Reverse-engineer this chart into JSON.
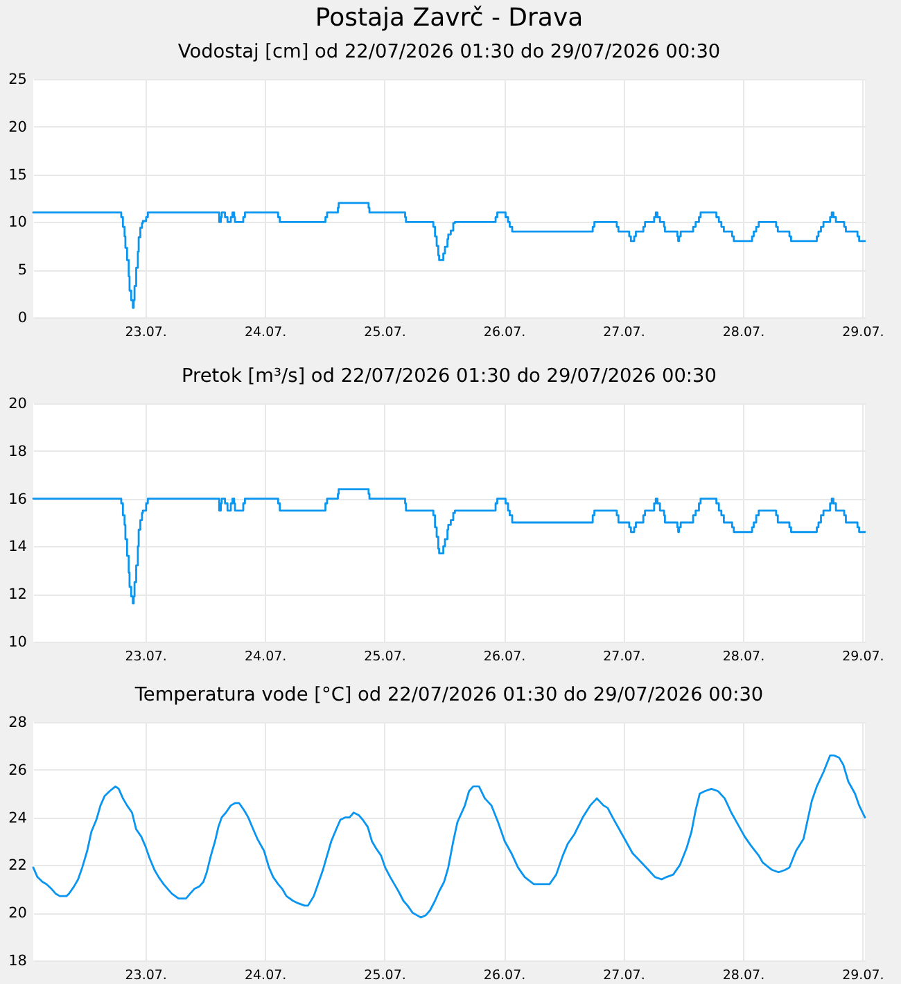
{
  "chart_data": [
    {
      "type": "step",
      "title": "Postaja Zavrč - Drava",
      "subtitle": "Vodostaj [cm] od 22/07/2026 01:30 do 29/07/2026 00:30",
      "x": [
        "2026-07-22T01:30",
        "2026-07-22T19:00",
        "2026-07-22T19:10",
        "2026-07-22T19:30",
        "2026-07-22T19:50",
        "2026-07-22T20:00",
        "2026-07-22T20:20",
        "2026-07-22T20:40",
        "2026-07-22T20:50",
        "2026-07-22T21:10",
        "2026-07-22T21:30",
        "2026-07-22T21:40",
        "2026-07-22T21:50",
        "2026-07-22T22:10",
        "2026-07-22T22:30",
        "2026-07-22T22:40",
        "2026-07-22T23:00",
        "2026-07-22T23:20",
        "2026-07-22T23:30",
        "2026-07-23T00:10",
        "2026-07-23T00:30",
        "2026-07-23T14:40",
        "2026-07-23T14:50",
        "2026-07-23T15:10",
        "2026-07-23T15:20",
        "2026-07-23T15:40",
        "2026-07-23T16:00",
        "2026-07-23T16:30",
        "2026-07-23T16:50",
        "2026-07-23T17:10",
        "2026-07-23T17:30",
        "2026-07-23T17:50",
        "2026-07-23T18:00",
        "2026-07-23T19:20",
        "2026-07-23T19:40",
        "2026-07-23T20:00",
        "2026-07-24T02:20",
        "2026-07-24T02:40",
        "2026-07-24T03:00",
        "2026-07-24T11:50",
        "2026-07-24T12:10",
        "2026-07-24T12:30",
        "2026-07-24T14:20",
        "2026-07-24T14:40",
        "2026-07-24T14:50",
        "2026-07-24T20:40",
        "2026-07-24T20:50",
        "2026-07-24T21:00",
        "2026-07-25T03:50",
        "2026-07-25T04:10",
        "2026-07-25T04:20",
        "2026-07-25T09:40",
        "2026-07-25T09:50",
        "2026-07-25T10:10",
        "2026-07-25T10:30",
        "2026-07-25T10:50",
        "2026-07-25T11:00",
        "2026-07-25T11:40",
        "2026-07-25T11:50",
        "2026-07-25T12:10",
        "2026-07-25T12:40",
        "2026-07-25T12:50",
        "2026-07-25T13:20",
        "2026-07-25T13:50",
        "2026-07-25T14:10",
        "2026-07-25T22:10",
        "2026-07-25T22:20",
        "2026-07-25T22:40",
        "2026-07-26T00:00",
        "2026-07-26T00:20",
        "2026-07-26T00:50",
        "2026-07-26T01:10",
        "2026-07-26T01:40",
        "2026-07-26T17:40",
        "2026-07-26T17:50",
        "2026-07-26T18:10",
        "2026-07-26T22:20",
        "2026-07-26T22:40",
        "2026-07-26T23:00",
        "2026-07-27T01:00",
        "2026-07-27T01:10",
        "2026-07-27T01:30",
        "2026-07-27T01:50",
        "2026-07-27T02:10",
        "2026-07-27T02:30",
        "2026-07-27T03:40",
        "2026-07-27T04:00",
        "2026-07-27T04:20",
        "2026-07-27T05:50",
        "2026-07-27T06:10",
        "2026-07-27T06:30",
        "2026-07-27T06:50",
        "2026-07-27T07:20",
        "2026-07-27T08:00",
        "2026-07-27T08:10",
        "2026-07-27T08:20",
        "2026-07-27T10:30",
        "2026-07-27T10:50",
        "2026-07-27T11:00",
        "2026-07-27T11:10",
        "2026-07-27T11:30",
        "2026-07-27T13:40",
        "2026-07-27T14:00",
        "2026-07-27T14:30",
        "2026-07-27T15:10",
        "2026-07-27T15:30",
        "2026-07-27T18:20",
        "2026-07-27T18:40",
        "2026-07-27T19:10",
        "2026-07-27T19:40",
        "2026-07-27T20:10",
        "2026-07-27T21:30",
        "2026-07-27T21:50",
        "2026-07-27T22:10",
        "2026-07-28T01:30",
        "2026-07-28T01:50",
        "2026-07-28T02:10",
        "2026-07-28T02:40",
        "2026-07-28T03:10",
        "2026-07-28T06:30",
        "2026-07-28T06:40",
        "2026-07-28T07:00",
        "2026-07-28T09:10",
        "2026-07-28T09:20",
        "2026-07-28T09:40",
        "2026-07-28T14:30",
        "2026-07-28T14:50",
        "2026-07-28T15:10",
        "2026-07-28T15:40",
        "2026-07-28T16:10",
        "2026-07-28T17:20",
        "2026-07-28T17:30",
        "2026-07-28T17:50",
        "2026-07-28T18:10",
        "2026-07-28T18:40",
        "2026-07-28T20:10",
        "2026-07-28T20:20",
        "2026-07-28T20:40",
        "2026-07-28T22:40",
        "2026-07-28T23:00",
        "2026-07-28T23:20",
        "2026-07-29T00:30"
      ],
      "values": [
        11,
        11,
        10.5,
        9.5,
        8.5,
        7.3,
        6,
        4.3,
        2.8,
        1.8,
        1,
        1.8,
        3.3,
        5.2,
        6.9,
        8.4,
        9.4,
        9.9,
        10.1,
        10.5,
        11,
        11,
        10,
        10.5,
        11,
        11,
        10.5,
        10,
        10,
        10.5,
        11,
        10.5,
        10,
        10,
        10.5,
        11,
        11,
        10.5,
        10,
        10,
        10.5,
        11,
        11,
        11.5,
        12,
        12,
        11.5,
        11,
        11,
        10.5,
        10,
        10,
        9.5,
        8.5,
        7.5,
        6.5,
        6,
        6,
        6.7,
        7.4,
        8.2,
        8.7,
        9.1,
        9.9,
        10,
        10,
        10.5,
        11,
        11,
        10.5,
        10,
        9.5,
        9,
        9,
        9.5,
        10,
        10,
        9.5,
        9,
        9,
        8.5,
        8,
        8,
        8.5,
        9,
        9,
        9.5,
        10,
        10,
        10.5,
        11,
        10.5,
        10,
        10,
        9.5,
        9,
        9,
        8.5,
        8,
        8.5,
        9,
        9,
        9.5,
        10,
        10.5,
        11,
        11,
        10.5,
        10,
        9.5,
        9,
        9,
        8.5,
        8,
        8,
        8.5,
        9,
        9.5,
        10,
        10,
        9.5,
        9,
        9,
        8.5,
        8,
        8,
        8.5,
        9,
        9.5,
        10,
        10,
        10.5,
        11,
        10.5,
        10,
        10,
        9.5,
        9,
        9,
        8.5,
        8,
        8
      ],
      "color": "#0a96f0",
      "xlim": [
        "2026-07-22T01:30",
        "2026-07-29T00:30"
      ],
      "xticks": [
        {
          "value": "2026-07-23",
          "label": "23.07."
        },
        {
          "value": "2026-07-24",
          "label": "24.07."
        },
        {
          "value": "2026-07-25",
          "label": "25.07."
        },
        {
          "value": "2026-07-26",
          "label": "26.07."
        },
        {
          "value": "2026-07-27",
          "label": "27.07."
        },
        {
          "value": "2026-07-28",
          "label": "28.07."
        },
        {
          "value": "2026-07-29",
          "label": "29.07."
        }
      ],
      "ylim": [
        0,
        25
      ],
      "yticks": [
        0,
        5,
        10,
        15,
        20,
        25
      ],
      "grid": true
    },
    {
      "type": "step",
      "title": "Pretok [m³/s] od 22/07/2026 01:30 do 29/07/2026 00:30",
      "x": [
        "2026-07-22T01:30",
        "2026-07-22T19:00",
        "2026-07-22T19:10",
        "2026-07-22T19:30",
        "2026-07-22T19:50",
        "2026-07-22T20:00",
        "2026-07-22T20:20",
        "2026-07-22T20:40",
        "2026-07-22T20:50",
        "2026-07-22T21:10",
        "2026-07-22T21:30",
        "2026-07-22T21:40",
        "2026-07-22T21:50",
        "2026-07-22T22:10",
        "2026-07-22T22:30",
        "2026-07-22T22:40",
        "2026-07-22T23:00",
        "2026-07-22T23:20",
        "2026-07-22T23:30",
        "2026-07-23T00:10",
        "2026-07-23T00:30",
        "2026-07-23T14:40",
        "2026-07-23T14:50",
        "2026-07-23T15:10",
        "2026-07-23T15:20",
        "2026-07-23T15:40",
        "2026-07-23T16:00",
        "2026-07-23T16:30",
        "2026-07-23T16:50",
        "2026-07-23T17:10",
        "2026-07-23T17:30",
        "2026-07-23T17:50",
        "2026-07-23T18:00",
        "2026-07-23T19:20",
        "2026-07-23T19:40",
        "2026-07-23T20:00",
        "2026-07-24T02:20",
        "2026-07-24T02:40",
        "2026-07-24T03:00",
        "2026-07-24T11:50",
        "2026-07-24T12:10",
        "2026-07-24T12:30",
        "2026-07-24T14:20",
        "2026-07-24T14:40",
        "2026-07-24T14:50",
        "2026-07-24T20:40",
        "2026-07-24T20:50",
        "2026-07-24T21:00",
        "2026-07-25T03:50",
        "2026-07-25T04:10",
        "2026-07-25T04:20",
        "2026-07-25T09:40",
        "2026-07-25T09:50",
        "2026-07-25T10:10",
        "2026-07-25T10:30",
        "2026-07-25T10:50",
        "2026-07-25T11:00",
        "2026-07-25T11:40",
        "2026-07-25T11:50",
        "2026-07-25T12:10",
        "2026-07-25T12:40",
        "2026-07-25T12:50",
        "2026-07-25T13:20",
        "2026-07-25T13:50",
        "2026-07-25T14:10",
        "2026-07-25T22:10",
        "2026-07-25T22:20",
        "2026-07-25T22:40",
        "2026-07-26T00:00",
        "2026-07-26T00:20",
        "2026-07-26T00:50",
        "2026-07-26T01:10",
        "2026-07-26T01:40",
        "2026-07-26T17:40",
        "2026-07-26T17:50",
        "2026-07-26T18:10",
        "2026-07-26T22:20",
        "2026-07-26T22:40",
        "2026-07-26T23:00",
        "2026-07-27T01:00",
        "2026-07-27T01:10",
        "2026-07-27T01:30",
        "2026-07-27T01:50",
        "2026-07-27T02:10",
        "2026-07-27T02:30",
        "2026-07-27T03:40",
        "2026-07-27T04:00",
        "2026-07-27T04:20",
        "2026-07-27T05:50",
        "2026-07-27T06:10",
        "2026-07-27T06:30",
        "2026-07-27T06:50",
        "2026-07-27T07:20",
        "2026-07-27T08:00",
        "2026-07-27T08:10",
        "2026-07-27T08:20",
        "2026-07-27T10:30",
        "2026-07-27T10:50",
        "2026-07-27T11:00",
        "2026-07-27T11:10",
        "2026-07-27T11:30",
        "2026-07-27T13:40",
        "2026-07-27T14:00",
        "2026-07-27T14:30",
        "2026-07-27T15:10",
        "2026-07-27T15:30",
        "2026-07-27T18:20",
        "2026-07-27T18:40",
        "2026-07-27T19:10",
        "2026-07-27T19:40",
        "2026-07-27T20:10",
        "2026-07-27T21:30",
        "2026-07-27T21:50",
        "2026-07-27T22:10",
        "2026-07-28T01:30",
        "2026-07-28T01:50",
        "2026-07-28T02:10",
        "2026-07-28T02:40",
        "2026-07-28T03:10",
        "2026-07-28T06:30",
        "2026-07-28T06:40",
        "2026-07-28T07:00",
        "2026-07-28T09:10",
        "2026-07-28T09:20",
        "2026-07-28T09:40",
        "2026-07-28T14:30",
        "2026-07-28T14:50",
        "2026-07-28T15:10",
        "2026-07-28T15:40",
        "2026-07-28T16:10",
        "2026-07-28T17:20",
        "2026-07-28T17:30",
        "2026-07-28T17:50",
        "2026-07-28T18:10",
        "2026-07-28T18:40",
        "2026-07-28T20:10",
        "2026-07-28T20:20",
        "2026-07-28T20:40",
        "2026-07-28T22:40",
        "2026-07-28T23:00",
        "2026-07-28T23:20",
        "2026-07-29T00:30"
      ],
      "values": [
        16.0,
        16.0,
        15.8,
        15.3,
        14.9,
        14.3,
        13.6,
        12.9,
        12.3,
        11.9,
        11.6,
        11.9,
        12.5,
        13.2,
        14.0,
        14.7,
        15.1,
        15.4,
        15.5,
        15.8,
        16.0,
        16.0,
        15.5,
        15.8,
        16.0,
        16.0,
        15.8,
        15.5,
        15.5,
        15.8,
        16.0,
        15.8,
        15.5,
        15.5,
        15.8,
        16.0,
        16.0,
        15.8,
        15.5,
        15.5,
        15.8,
        16.0,
        16.0,
        16.2,
        16.4,
        16.4,
        16.2,
        16.0,
        16.0,
        15.8,
        15.5,
        15.5,
        15.3,
        14.8,
        14.4,
        13.9,
        13.7,
        13.7,
        14.0,
        14.3,
        14.7,
        14.9,
        15.1,
        15.4,
        15.5,
        15.5,
        15.8,
        16.0,
        16.0,
        15.8,
        15.5,
        15.3,
        15.0,
        15.0,
        15.3,
        15.5,
        15.5,
        15.3,
        15.0,
        15.0,
        14.8,
        14.6,
        14.6,
        14.8,
        15.0,
        15.0,
        15.3,
        15.5,
        15.5,
        15.8,
        16.0,
        15.8,
        15.5,
        15.5,
        15.3,
        15.0,
        15.0,
        14.8,
        14.6,
        14.8,
        15.0,
        15.0,
        15.3,
        15.5,
        15.8,
        16.0,
        16.0,
        15.8,
        15.5,
        15.3,
        15.0,
        15.0,
        14.8,
        14.6,
        14.6,
        14.8,
        15.0,
        15.3,
        15.5,
        15.5,
        15.3,
        15.0,
        15.0,
        14.8,
        14.6,
        14.6,
        14.8,
        15.0,
        15.3,
        15.5,
        15.5,
        15.8,
        16.0,
        15.8,
        15.5,
        15.5,
        15.3,
        15.0,
        15.0,
        14.8,
        14.6,
        14.6
      ],
      "color": "#0a96f0",
      "xlim": [
        "2026-07-22T01:30",
        "2026-07-29T00:30"
      ],
      "xticks": [
        {
          "value": "2026-07-23",
          "label": "23.07."
        },
        {
          "value": "2026-07-24",
          "label": "24.07."
        },
        {
          "value": "2026-07-25",
          "label": "25.07."
        },
        {
          "value": "2026-07-26",
          "label": "26.07."
        },
        {
          "value": "2026-07-27",
          "label": "27.07."
        },
        {
          "value": "2026-07-28",
          "label": "28.07."
        },
        {
          "value": "2026-07-29",
          "label": "29.07."
        }
      ],
      "ylim": [
        10,
        20
      ],
      "yticks": [
        10,
        12,
        14,
        16,
        18,
        20
      ],
      "grid": true
    },
    {
      "type": "line",
      "title": "Temperatura vode [°C] od 22/07/2026 01:30 do 29/07/2026 00:30",
      "x": [
        "2026-07-22T01:30",
        "2026-07-22T02:20",
        "2026-07-22T03:20",
        "2026-07-22T04:10",
        "2026-07-22T05:10",
        "2026-07-22T06:00",
        "2026-07-22T06:50",
        "2026-07-22T08:10",
        "2026-07-22T08:40",
        "2026-07-22T09:40",
        "2026-07-22T10:30",
        "2026-07-22T11:20",
        "2026-07-22T12:20",
        "2026-07-22T13:10",
        "2026-07-22T14:10",
        "2026-07-22T15:00",
        "2026-07-22T15:50",
        "2026-07-22T16:50",
        "2026-07-22T18:00",
        "2026-07-22T18:40",
        "2026-07-22T19:30",
        "2026-07-22T20:20",
        "2026-07-22T21:20",
        "2026-07-22T22:10",
        "2026-07-22T23:10",
        "2026-07-23T00:00",
        "2026-07-23T00:50",
        "2026-07-23T01:50",
        "2026-07-23T02:40",
        "2026-07-23T03:40",
        "2026-07-23T04:30",
        "2026-07-23T05:20",
        "2026-07-23T06:40",
        "2026-07-23T08:10",
        "2026-07-23T09:00",
        "2026-07-23T09:50",
        "2026-07-23T10:50",
        "2026-07-23T11:40",
        "2026-07-23T12:20",
        "2026-07-23T13:10",
        "2026-07-23T14:00",
        "2026-07-23T14:40",
        "2026-07-23T15:20",
        "2026-07-23T16:10",
        "2026-07-23T17:10",
        "2026-07-23T18:00",
        "2026-07-23T18:50",
        "2026-07-23T19:50",
        "2026-07-23T20:40",
        "2026-07-23T21:40",
        "2026-07-23T22:30",
        "2026-07-23T23:50",
        "2026-07-24T00:50",
        "2026-07-24T01:40",
        "2026-07-24T02:40",
        "2026-07-24T03:30",
        "2026-07-24T04:20",
        "2026-07-24T05:40",
        "2026-07-24T06:40",
        "2026-07-24T08:00",
        "2026-07-24T08:40",
        "2026-07-24T09:50",
        "2026-07-24T10:40",
        "2026-07-24T11:40",
        "2026-07-24T12:30",
        "2026-07-24T13:20",
        "2026-07-24T14:20",
        "2026-07-24T15:10",
        "2026-07-24T16:10",
        "2026-07-24T17:00",
        "2026-07-24T17:50",
        "2026-07-24T18:50",
        "2026-07-24T19:40",
        "2026-07-24T20:40",
        "2026-07-24T21:30",
        "2026-07-24T22:20",
        "2026-07-24T23:20",
        "2026-07-25T00:10",
        "2026-07-25T01:10",
        "2026-07-25T02:00",
        "2026-07-25T02:50",
        "2026-07-25T03:50",
        "2026-07-25T04:40",
        "2026-07-25T05:40",
        "2026-07-25T06:30",
        "2026-07-25T07:20",
        "2026-07-25T08:20",
        "2026-07-25T09:10",
        "2026-07-25T10:10",
        "2026-07-25T11:00",
        "2026-07-25T12:00",
        "2026-07-25T12:50",
        "2026-07-25T13:50",
        "2026-07-25T14:40",
        "2026-07-25T16:10",
        "2026-07-25T17:00",
        "2026-07-25T17:50",
        "2026-07-25T19:00",
        "2026-07-25T20:10",
        "2026-07-25T21:30",
        "2026-07-25T22:50",
        "2026-07-26T00:10",
        "2026-07-26T01:30",
        "2026-07-26T02:50",
        "2026-07-26T04:10",
        "2026-07-26T06:00",
        "2026-07-26T09:10",
        "2026-07-26T10:30",
        "2026-07-26T11:50",
        "2026-07-26T12:50",
        "2026-07-26T14:10",
        "2026-07-26T15:50",
        "2026-07-26T17:20",
        "2026-07-26T18:40",
        "2026-07-26T20:00",
        "2026-07-26T20:50",
        "2026-07-26T21:50",
        "2026-07-26T23:10",
        "2026-07-27T00:30",
        "2026-07-27T01:50",
        "2026-07-27T03:40",
        "2026-07-27T05:00",
        "2026-07-27T06:20",
        "2026-07-27T07:40",
        "2026-07-27T08:40",
        "2026-07-27T10:00",
        "2026-07-27T11:20",
        "2026-07-27T12:40",
        "2026-07-27T13:40",
        "2026-07-27T14:30",
        "2026-07-27T15:20",
        "2026-07-27T16:20",
        "2026-07-27T17:40",
        "2026-07-27T19:00",
        "2026-07-27T20:20",
        "2026-07-27T21:40",
        "2026-07-27T23:00",
        "2026-07-28T00:20",
        "2026-07-28T01:40",
        "2026-07-28T03:10",
        "2026-07-28T04:00",
        "2026-07-28T05:50",
        "2026-07-28T07:10",
        "2026-07-28T08:30",
        "2026-07-28T09:20",
        "2026-07-28T10:40",
        "2026-07-28T12:10",
        "2026-07-28T13:00",
        "2026-07-28T13:50",
        "2026-07-28T14:50",
        "2026-07-28T16:10",
        "2026-07-28T17:30",
        "2026-07-28T18:20",
        "2026-07-28T19:20",
        "2026-07-28T20:10",
        "2026-07-28T21:10",
        "2026-07-28T22:30",
        "2026-07-28T23:20",
        "2026-07-29T00:30"
      ],
      "values": [
        21.9,
        21.5,
        21.3,
        21.2,
        21.0,
        20.8,
        20.7,
        20.7,
        20.8,
        21.1,
        21.4,
        21.9,
        22.6,
        23.4,
        23.9,
        24.5,
        24.9,
        25.1,
        25.3,
        25.2,
        24.8,
        24.5,
        24.2,
        23.5,
        23.2,
        22.8,
        22.3,
        21.8,
        21.5,
        21.2,
        21.0,
        20.8,
        20.6,
        20.6,
        20.8,
        21.0,
        21.1,
        21.3,
        21.7,
        22.4,
        23.0,
        23.6,
        24.0,
        24.2,
        24.5,
        24.6,
        24.6,
        24.3,
        24.0,
        23.5,
        23.1,
        22.6,
        21.9,
        21.5,
        21.2,
        21.0,
        20.7,
        20.5,
        20.4,
        20.3,
        20.3,
        20.7,
        21.2,
        21.8,
        22.4,
        23.0,
        23.5,
        23.9,
        24.0,
        24.0,
        24.2,
        24.1,
        23.9,
        23.6,
        23.0,
        22.7,
        22.4,
        21.9,
        21.5,
        21.2,
        20.9,
        20.5,
        20.3,
        20.0,
        19.9,
        19.8,
        19.9,
        20.1,
        20.5,
        20.9,
        21.3,
        21.9,
        23.0,
        23.8,
        24.5,
        25.1,
        25.3,
        25.3,
        24.8,
        24.5,
        23.8,
        23.0,
        22.5,
        21.9,
        21.5,
        21.2,
        21.2,
        21.6,
        22.4,
        22.9,
        23.3,
        24.0,
        24.5,
        24.8,
        24.5,
        24.4,
        24.0,
        23.5,
        23.0,
        22.5,
        22.1,
        21.8,
        21.5,
        21.4,
        21.5,
        21.6,
        22.0,
        22.7,
        23.4,
        24.3,
        25.0,
        25.1,
        25.2,
        25.1,
        24.8,
        24.2,
        23.7,
        23.2,
        22.8,
        22.4,
        22.1,
        21.8,
        21.7,
        21.8,
        21.9,
        22.6,
        23.1,
        23.9,
        24.7,
        25.3,
        25.9,
        26.6,
        26.6,
        26.5,
        26.2,
        25.5,
        25.0,
        24.5,
        24.0
      ],
      "color": "#0a96f0",
      "xlim": [
        "2026-07-22T01:30",
        "2026-07-29T00:30"
      ],
      "xticks": [
        {
          "value": "2026-07-23",
          "label": "23.07."
        },
        {
          "value": "2026-07-24",
          "label": "24.07."
        },
        {
          "value": "2026-07-25",
          "label": "25.07."
        },
        {
          "value": "2026-07-26",
          "label": "26.07."
        },
        {
          "value": "2026-07-27",
          "label": "27.07."
        },
        {
          "value": "2026-07-28",
          "label": "28.07."
        },
        {
          "value": "2026-07-29",
          "label": "29.07."
        }
      ],
      "ylim": [
        18,
        28
      ],
      "yticks": [
        18,
        20,
        22,
        24,
        26,
        28
      ],
      "grid": true
    }
  ]
}
